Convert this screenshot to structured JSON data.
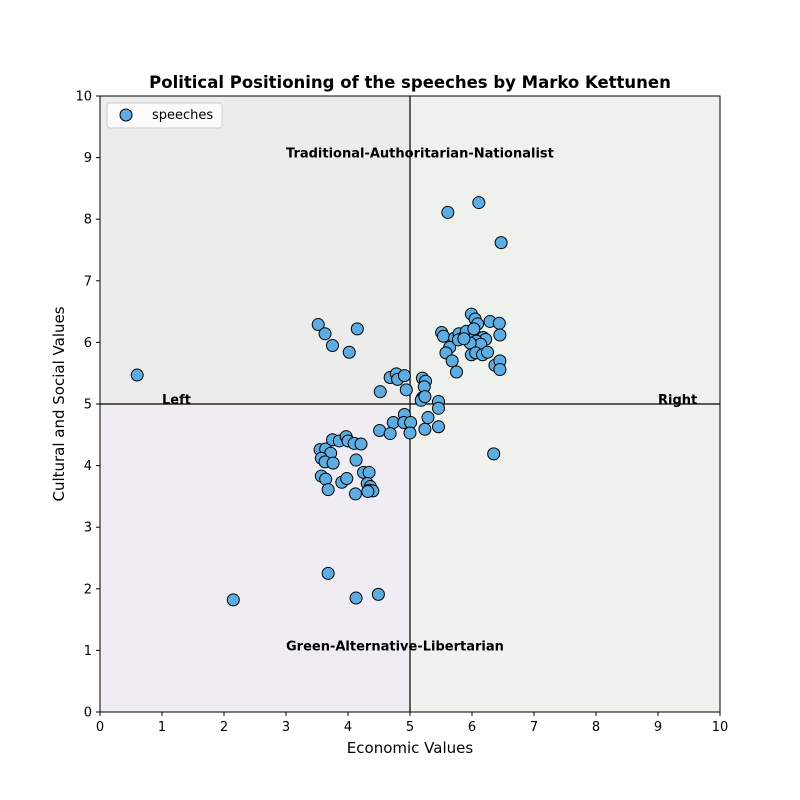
{
  "chart_data": {
    "type": "scatter",
    "title": "Political Positioning of the speeches by Marko Kettunen",
    "xlabel": "Economic Values",
    "ylabel": "Cultural and Social Values",
    "xlim": [
      0,
      10
    ],
    "ylim": [
      0,
      10
    ],
    "xticks": [
      0,
      1,
      2,
      3,
      4,
      5,
      6,
      7,
      8,
      9,
      10
    ],
    "yticks": [
      0,
      1,
      2,
      3,
      4,
      5,
      6,
      7,
      8,
      9,
      10
    ],
    "grid": false,
    "legend_position": "upper-left",
    "divider_x": 5,
    "divider_y": 5,
    "quadrant_colors": {
      "top_left": "#ececec",
      "top_right": "#eff1ec",
      "bottom_left": "#efedf3",
      "bottom_right": "#f1f2ed"
    },
    "annotations": [
      {
        "text": "Traditional-Authoritarian-Nationalist",
        "x": 3.0,
        "y": 9.0
      },
      {
        "text": "Green-Alternative-Libertarian",
        "x": 3.0,
        "y": 1.0
      },
      {
        "text": "Left",
        "x": 1.0,
        "y": 5.0
      },
      {
        "text": "Right",
        "x": 9.0,
        "y": 5.0
      }
    ],
    "series": [
      {
        "name": "speeches",
        "color": "#5dade2",
        "edgecolor": "#000000",
        "points": [
          [
            0.6,
            5.47
          ],
          [
            2.15,
            1.82
          ],
          [
            3.68,
            2.25
          ],
          [
            4.13,
            1.85
          ],
          [
            4.49,
            1.91
          ],
          [
            3.52,
            6.29
          ],
          [
            3.63,
            6.14
          ],
          [
            3.75,
            5.95
          ],
          [
            4.02,
            5.84
          ],
          [
            4.15,
            6.22
          ],
          [
            5.61,
            8.11
          ],
          [
            6.11,
            8.27
          ],
          [
            6.47,
            7.62
          ],
          [
            3.55,
            4.26
          ],
          [
            3.64,
            4.27
          ],
          [
            3.72,
            4.2
          ],
          [
            3.57,
            4.12
          ],
          [
            3.63,
            4.06
          ],
          [
            3.76,
            4.04
          ],
          [
            3.75,
            4.42
          ],
          [
            3.86,
            4.4
          ],
          [
            3.97,
            4.47
          ],
          [
            4.0,
            4.4
          ],
          [
            4.1,
            4.36
          ],
          [
            4.21,
            4.35
          ],
          [
            4.13,
            4.09
          ],
          [
            4.25,
            3.89
          ],
          [
            4.34,
            3.89
          ],
          [
            3.57,
            3.83
          ],
          [
            3.64,
            3.78
          ],
          [
            3.9,
            3.73
          ],
          [
            3.98,
            3.79
          ],
          [
            4.31,
            3.71
          ],
          [
            4.36,
            3.66
          ],
          [
            4.34,
            3.6
          ],
          [
            4.4,
            3.59
          ],
          [
            4.32,
            3.58
          ],
          [
            3.68,
            3.61
          ],
          [
            4.12,
            3.54
          ],
          [
            4.52,
            5.2
          ],
          [
            4.68,
            5.43
          ],
          [
            4.78,
            5.49
          ],
          [
            4.8,
            5.4
          ],
          [
            4.91,
            5.46
          ],
          [
            4.94,
            5.23
          ],
          [
            5.2,
            5.42
          ],
          [
            5.25,
            5.37
          ],
          [
            5.23,
            5.28
          ],
          [
            5.2,
            5.1
          ],
          [
            5.18,
            5.06
          ],
          [
            5.24,
            5.12
          ],
          [
            5.46,
            5.04
          ],
          [
            5.46,
            4.93
          ],
          [
            5.29,
            4.78
          ],
          [
            4.91,
            4.83
          ],
          [
            4.73,
            4.7
          ],
          [
            4.9,
            4.7
          ],
          [
            5.01,
            4.7
          ],
          [
            4.51,
            4.57
          ],
          [
            4.68,
            4.52
          ],
          [
            5.0,
            4.53
          ],
          [
            5.24,
            4.59
          ],
          [
            5.46,
            4.63
          ],
          [
            6.35,
            4.19
          ],
          [
            5.51,
            6.16
          ],
          [
            5.54,
            6.1
          ],
          [
            5.72,
            6.07
          ],
          [
            5.79,
            6.14
          ],
          [
            5.88,
            6.1
          ],
          [
            5.91,
            6.18
          ],
          [
            5.99,
            6.46
          ],
          [
            6.05,
            6.38
          ],
          [
            6.09,
            6.3
          ],
          [
            6.29,
            6.34
          ],
          [
            6.44,
            6.31
          ],
          [
            6.45,
            6.12
          ],
          [
            6.05,
            6.12
          ],
          [
            6.18,
            6.08
          ],
          [
            6.22,
            6.05
          ],
          [
            6.07,
            6.02
          ],
          [
            6.14,
            5.97
          ],
          [
            5.97,
            5.99
          ],
          [
            5.64,
            5.92
          ],
          [
            5.58,
            5.83
          ],
          [
            5.99,
            5.8
          ],
          [
            6.06,
            5.83
          ],
          [
            6.17,
            5.8
          ],
          [
            6.25,
            5.84
          ],
          [
            5.68,
            5.7
          ],
          [
            5.75,
            5.52
          ],
          [
            6.37,
            5.63
          ],
          [
            6.45,
            5.7
          ],
          [
            6.45,
            5.56
          ],
          [
            5.78,
            6.04
          ],
          [
            5.87,
            6.06
          ],
          [
            6.03,
            6.22
          ]
        ]
      }
    ]
  }
}
